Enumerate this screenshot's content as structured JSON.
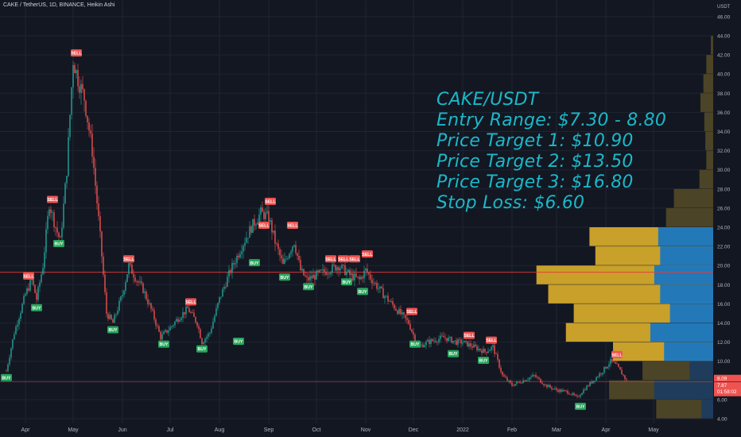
{
  "header": {
    "title": "CAKE / TetherUS, 1D, BINANCE, Heikin Ashi"
  },
  "axis": {
    "unit": "USDT"
  },
  "annotation": {
    "lines": [
      "CAKE/USDT",
      "Entry Range: $7.30 - 8.80",
      "Price Target 1: $10.90",
      "Price Target 2: $13.50",
      "Price Target 3: $16.80",
      "Stop Loss: $6.60"
    ]
  },
  "colors": {
    "background": "#131722",
    "grid": "#1f2433",
    "up": "#26a69a",
    "down": "#ef5350",
    "annotation": "#1bb8c9",
    "hline": "#e83a3a",
    "vol_up_in": "#2379b8",
    "vol_dn_in": "#c8a02a",
    "vol_up_out": "#1f3c5c",
    "vol_dn_out": "#4c4426",
    "buy_label": "#26a65b",
    "sell_label": "#ef5350"
  },
  "chart_data": {
    "type": "candlestick",
    "title": "CAKE / TetherUS, 1D, BINANCE, Heikin Ashi",
    "y_axis": {
      "unit": "USDT",
      "range": [
        4.0,
        48.0
      ],
      "ticks": [
        4.0,
        6.0,
        8.0,
        10.0,
        12.0,
        14.0,
        16.0,
        18.0,
        20.0,
        22.0,
        24.0,
        26.0,
        28.0,
        30.0,
        32.0,
        34.0,
        36.0,
        38.0,
        40.0,
        42.0,
        44.0,
        46.0,
        48.0
      ]
    },
    "x_axis": {
      "ticks": [
        "Apr",
        "May",
        "Jun",
        "Jul",
        "Aug",
        "Sep",
        "Oct",
        "Nov",
        "Dec",
        "2022",
        "Feb",
        "Mar",
        "Apr",
        "May"
      ]
    },
    "price_path": [
      {
        "date": "Mar 20",
        "price": 9.0
      },
      {
        "date": "Mar 25",
        "price": 13.0
      },
      {
        "date": "Apr 1",
        "price": 17.0
      },
      {
        "date": "Apr 5",
        "price": 18.5
      },
      {
        "date": "Apr 8",
        "price": 16.5
      },
      {
        "date": "Apr 12",
        "price": 20.0
      },
      {
        "date": "Apr 16",
        "price": 26.5
      },
      {
        "date": "Apr 20",
        "price": 24.0
      },
      {
        "date": "Apr 23",
        "price": 22.5
      },
      {
        "date": "Apr 27",
        "price": 30.0
      },
      {
        "date": "May 1",
        "price": 41.5
      },
      {
        "date": "May 4",
        "price": 39.5
      },
      {
        "date": "May 8",
        "price": 37.5
      },
      {
        "date": "May 13",
        "price": 32.0
      },
      {
        "date": "May 18",
        "price": 23.0
      },
      {
        "date": "May 22",
        "price": 15.0
      },
      {
        "date": "May 26",
        "price": 14.0
      },
      {
        "date": "Jun 1",
        "price": 17.0
      },
      {
        "date": "Jun 5",
        "price": 20.0
      },
      {
        "date": "Jun 10",
        "price": 18.5
      },
      {
        "date": "Jun 14",
        "price": 17.5
      },
      {
        "date": "Jun 20",
        "price": 15.0
      },
      {
        "date": "Jun 25",
        "price": 12.5
      },
      {
        "date": "Jul 1",
        "price": 13.5
      },
      {
        "date": "Jul 6",
        "price": 14.5
      },
      {
        "date": "Jul 12",
        "price": 15.5
      },
      {
        "date": "Jul 18",
        "price": 14.0
      },
      {
        "date": "Jul 21",
        "price": 12.0
      },
      {
        "date": "Jul 26",
        "price": 13.0
      },
      {
        "date": "Aug 1",
        "price": 16.5
      },
      {
        "date": "Aug 8",
        "price": 19.5
      },
      {
        "date": "Aug 15",
        "price": 22.0
      },
      {
        "date": "Aug 21",
        "price": 24.0
      },
      {
        "date": "Aug 27",
        "price": 25.5
      },
      {
        "date": "Sep 1",
        "price": 25.0
      },
      {
        "date": "Sep 5",
        "price": 22.5
      },
      {
        "date": "Sep 10",
        "price": 20.0
      },
      {
        "date": "Sep 14",
        "price": 21.5
      },
      {
        "date": "Sep 17",
        "price": 22.5
      },
      {
        "date": "Sep 21",
        "price": 19.5
      },
      {
        "date": "Sep 25",
        "price": 18.5
      },
      {
        "date": "Oct 1",
        "price": 19.0
      },
      {
        "date": "Oct 8",
        "price": 19.5
      },
      {
        "date": "Oct 15",
        "price": 20.0
      },
      {
        "date": "Oct 22",
        "price": 19.0
      },
      {
        "date": "Oct 28",
        "price": 18.5
      },
      {
        "date": "Nov 1",
        "price": 19.5
      },
      {
        "date": "Nov 5",
        "price": 18.5
      },
      {
        "date": "Nov 12",
        "price": 17.0
      },
      {
        "date": "Nov 20",
        "price": 15.5
      },
      {
        "date": "Nov 28",
        "price": 14.0
      },
      {
        "date": "Dec 4",
        "price": 11.5
      },
      {
        "date": "Dec 10",
        "price": 12.0
      },
      {
        "date": "Dec 20",
        "price": 12.5
      },
      {
        "date": "Dec 28",
        "price": 12.0
      },
      {
        "date": "Jan 1",
        "price": 12.0
      },
      {
        "date": "Jan 8",
        "price": 11.5
      },
      {
        "date": "Jan 15",
        "price": 11.0
      },
      {
        "date": "Jan 20",
        "price": 11.5
      },
      {
        "date": "Jan 26",
        "price": 8.5
      },
      {
        "date": "Feb 1",
        "price": 7.5
      },
      {
        "date": "Feb 8",
        "price": 8.0
      },
      {
        "date": "Feb 15",
        "price": 8.5
      },
      {
        "date": "Feb 22",
        "price": 7.5
      },
      {
        "date": "Mar 1",
        "price": 7.0
      },
      {
        "date": "Mar 8",
        "price": 6.8
      },
      {
        "date": "Mar 14",
        "price": 6.2
      },
      {
        "date": "Mar 18",
        "price": 7.0
      },
      {
        "date": "Mar 24",
        "price": 8.0
      },
      {
        "date": "Mar 30",
        "price": 9.0
      },
      {
        "date": "Apr 4",
        "price": 10.0
      },
      {
        "date": "Apr 8",
        "price": 9.5
      },
      {
        "date": "Apr 12",
        "price": 8.5
      },
      {
        "date": "Apr 14",
        "price": 8.0
      }
    ],
    "signals": [
      {
        "date": "Mar 20",
        "price": 9.0,
        "label": "BUY"
      },
      {
        "date": "Apr 3",
        "price": 18.2,
        "label": "SELL"
      },
      {
        "date": "Apr 8",
        "price": 16.3,
        "label": "BUY"
      },
      {
        "date": "Apr 18",
        "price": 26.2,
        "label": "SELL"
      },
      {
        "date": "Apr 22",
        "price": 23.0,
        "label": "BUY"
      },
      {
        "date": "May 3",
        "price": 41.5,
        "label": "SELL"
      },
      {
        "date": "May 26",
        "price": 14.0,
        "label": "BUY"
      },
      {
        "date": "Jun 5",
        "price": 20.0,
        "label": "SELL"
      },
      {
        "date": "Jun 27",
        "price": 12.5,
        "label": "BUY"
      },
      {
        "date": "Jul 14",
        "price": 15.5,
        "label": "SELL"
      },
      {
        "date": "Jul 21",
        "price": 12.0,
        "label": "BUY"
      },
      {
        "date": "Aug 13",
        "price": 12.8,
        "label": "BUY"
      },
      {
        "date": "Aug 23",
        "price": 21.0,
        "label": "BUY"
      },
      {
        "date": "Aug 29",
        "price": 23.5,
        "label": "SELL"
      },
      {
        "date": "Sep 2",
        "price": 26.0,
        "label": "SELL"
      },
      {
        "date": "Sep 11",
        "price": 19.5,
        "label": "BUY"
      },
      {
        "date": "Sep 16",
        "price": 23.5,
        "label": "SELL"
      },
      {
        "date": "Sep 26",
        "price": 18.5,
        "label": "BUY"
      },
      {
        "date": "Oct 10",
        "price": 20.0,
        "label": "SELL"
      },
      {
        "date": "Oct 18",
        "price": 20.0,
        "label": "SELL"
      },
      {
        "date": "Oct 20",
        "price": 19.0,
        "label": "BUY"
      },
      {
        "date": "Oct 25",
        "price": 20.0,
        "label": "SELL"
      },
      {
        "date": "Oct 30",
        "price": 18.0,
        "label": "BUY"
      },
      {
        "date": "Nov 2",
        "price": 20.5,
        "label": "SELL"
      },
      {
        "date": "Nov 30",
        "price": 14.5,
        "label": "SELL"
      },
      {
        "date": "Dec 2",
        "price": 12.5,
        "label": "BUY"
      },
      {
        "date": "Dec 26",
        "price": 11.5,
        "label": "BUY"
      },
      {
        "date": "Jan 5",
        "price": 12.0,
        "label": "SELL"
      },
      {
        "date": "Jan 14",
        "price": 10.8,
        "label": "BUY"
      },
      {
        "date": "Jan 19",
        "price": 11.5,
        "label": "SELL"
      },
      {
        "date": "Mar 16",
        "price": 6.0,
        "label": "BUY"
      },
      {
        "date": "Apr 8",
        "price": 10.0,
        "label": "SELL"
      }
    ],
    "horizontal_lines": [
      19.3,
      7.87
    ],
    "last_price_labels": [
      "8.09",
      "7.87",
      "01:58:02"
    ],
    "volume_profile": [
      {
        "price": 43.0,
        "up": 0.0,
        "down": 0.012
      },
      {
        "price": 41.0,
        "up": 0.0,
        "down": 0.035
      },
      {
        "price": 39.0,
        "up": 0.0,
        "down": 0.05
      },
      {
        "price": 37.0,
        "up": 0.0,
        "down": 0.065
      },
      {
        "price": 35.0,
        "up": 0.0,
        "down": 0.045
      },
      {
        "price": 33.0,
        "up": 0.0,
        "down": 0.04
      },
      {
        "price": 31.0,
        "up": 0.0,
        "down": 0.035
      },
      {
        "price": 29.0,
        "up": 0.0,
        "down": 0.07
      },
      {
        "price": 27.0,
        "up": 0.0,
        "down": 0.2
      },
      {
        "price": 25.0,
        "up": 0.0,
        "down": 0.24
      },
      {
        "price": 23.0,
        "up": 0.28,
        "down": 0.63
      },
      {
        "price": 21.0,
        "up": 0.27,
        "down": 0.6
      },
      {
        "price": 19.0,
        "up": 0.3,
        "down": 0.9
      },
      {
        "price": 17.0,
        "up": 0.27,
        "down": 0.84
      },
      {
        "price": 15.0,
        "up": 0.22,
        "down": 0.71
      },
      {
        "price": 13.0,
        "up": 0.32,
        "down": 0.75
      },
      {
        "price": 11.0,
        "up": 0.25,
        "down": 0.51
      },
      {
        "price": 9.0,
        "up": 0.12,
        "down": 0.36
      },
      {
        "price": 7.0,
        "up": 0.3,
        "down": 0.53
      },
      {
        "price": 5.0,
        "up": 0.06,
        "down": 0.29
      }
    ]
  }
}
